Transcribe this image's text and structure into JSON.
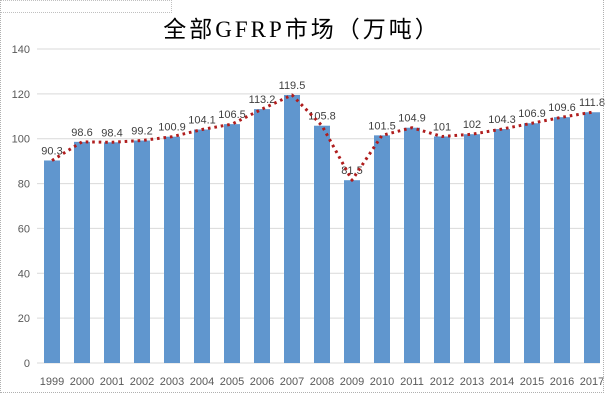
{
  "chart_data": {
    "type": "bar",
    "title": "全部GFRP市场（万吨）",
    "categories": [
      "1999",
      "2000",
      "2001",
      "2002",
      "2003",
      "2004",
      "2005",
      "2006",
      "2007",
      "2008",
      "2009",
      "2010",
      "2011",
      "2012",
      "2013",
      "2014",
      "2015",
      "2016",
      "2017"
    ],
    "values": [
      90.3,
      98.6,
      98.4,
      99.2,
      100.9,
      104.1,
      106.5,
      113.2,
      119.5,
      105.8,
      81.5,
      101.5,
      104.9,
      101,
      102,
      104.3,
      106.9,
      109.6,
      111.8
    ],
    "data_labels": [
      "90.3",
      "98.6",
      "98.4",
      "99.2",
      "100.9",
      "104.1",
      "106.5",
      "113.2",
      "119.5",
      "105.8",
      "81.5",
      "101.5",
      "104.9",
      "101",
      "102",
      "104.3",
      "106.9",
      "109.6",
      "111.8"
    ],
    "trend_line": {
      "style": "dotted",
      "follows": "values",
      "color": "#b01d1d"
    },
    "xlabel": "",
    "ylabel": "",
    "ylim": [
      0,
      140
    ],
    "yticks": [
      0,
      20,
      40,
      60,
      80,
      100,
      120,
      140
    ],
    "grid": "horizontal",
    "legend": "none",
    "colors": {
      "bar": "#6096ce",
      "line": "#b01d1d",
      "gridline": "#d9d9d9",
      "tick_text": "#595959",
      "data_label": "#3f3f3f",
      "background": "#ffffff",
      "marquee_border": "#b0b0b0"
    }
  }
}
